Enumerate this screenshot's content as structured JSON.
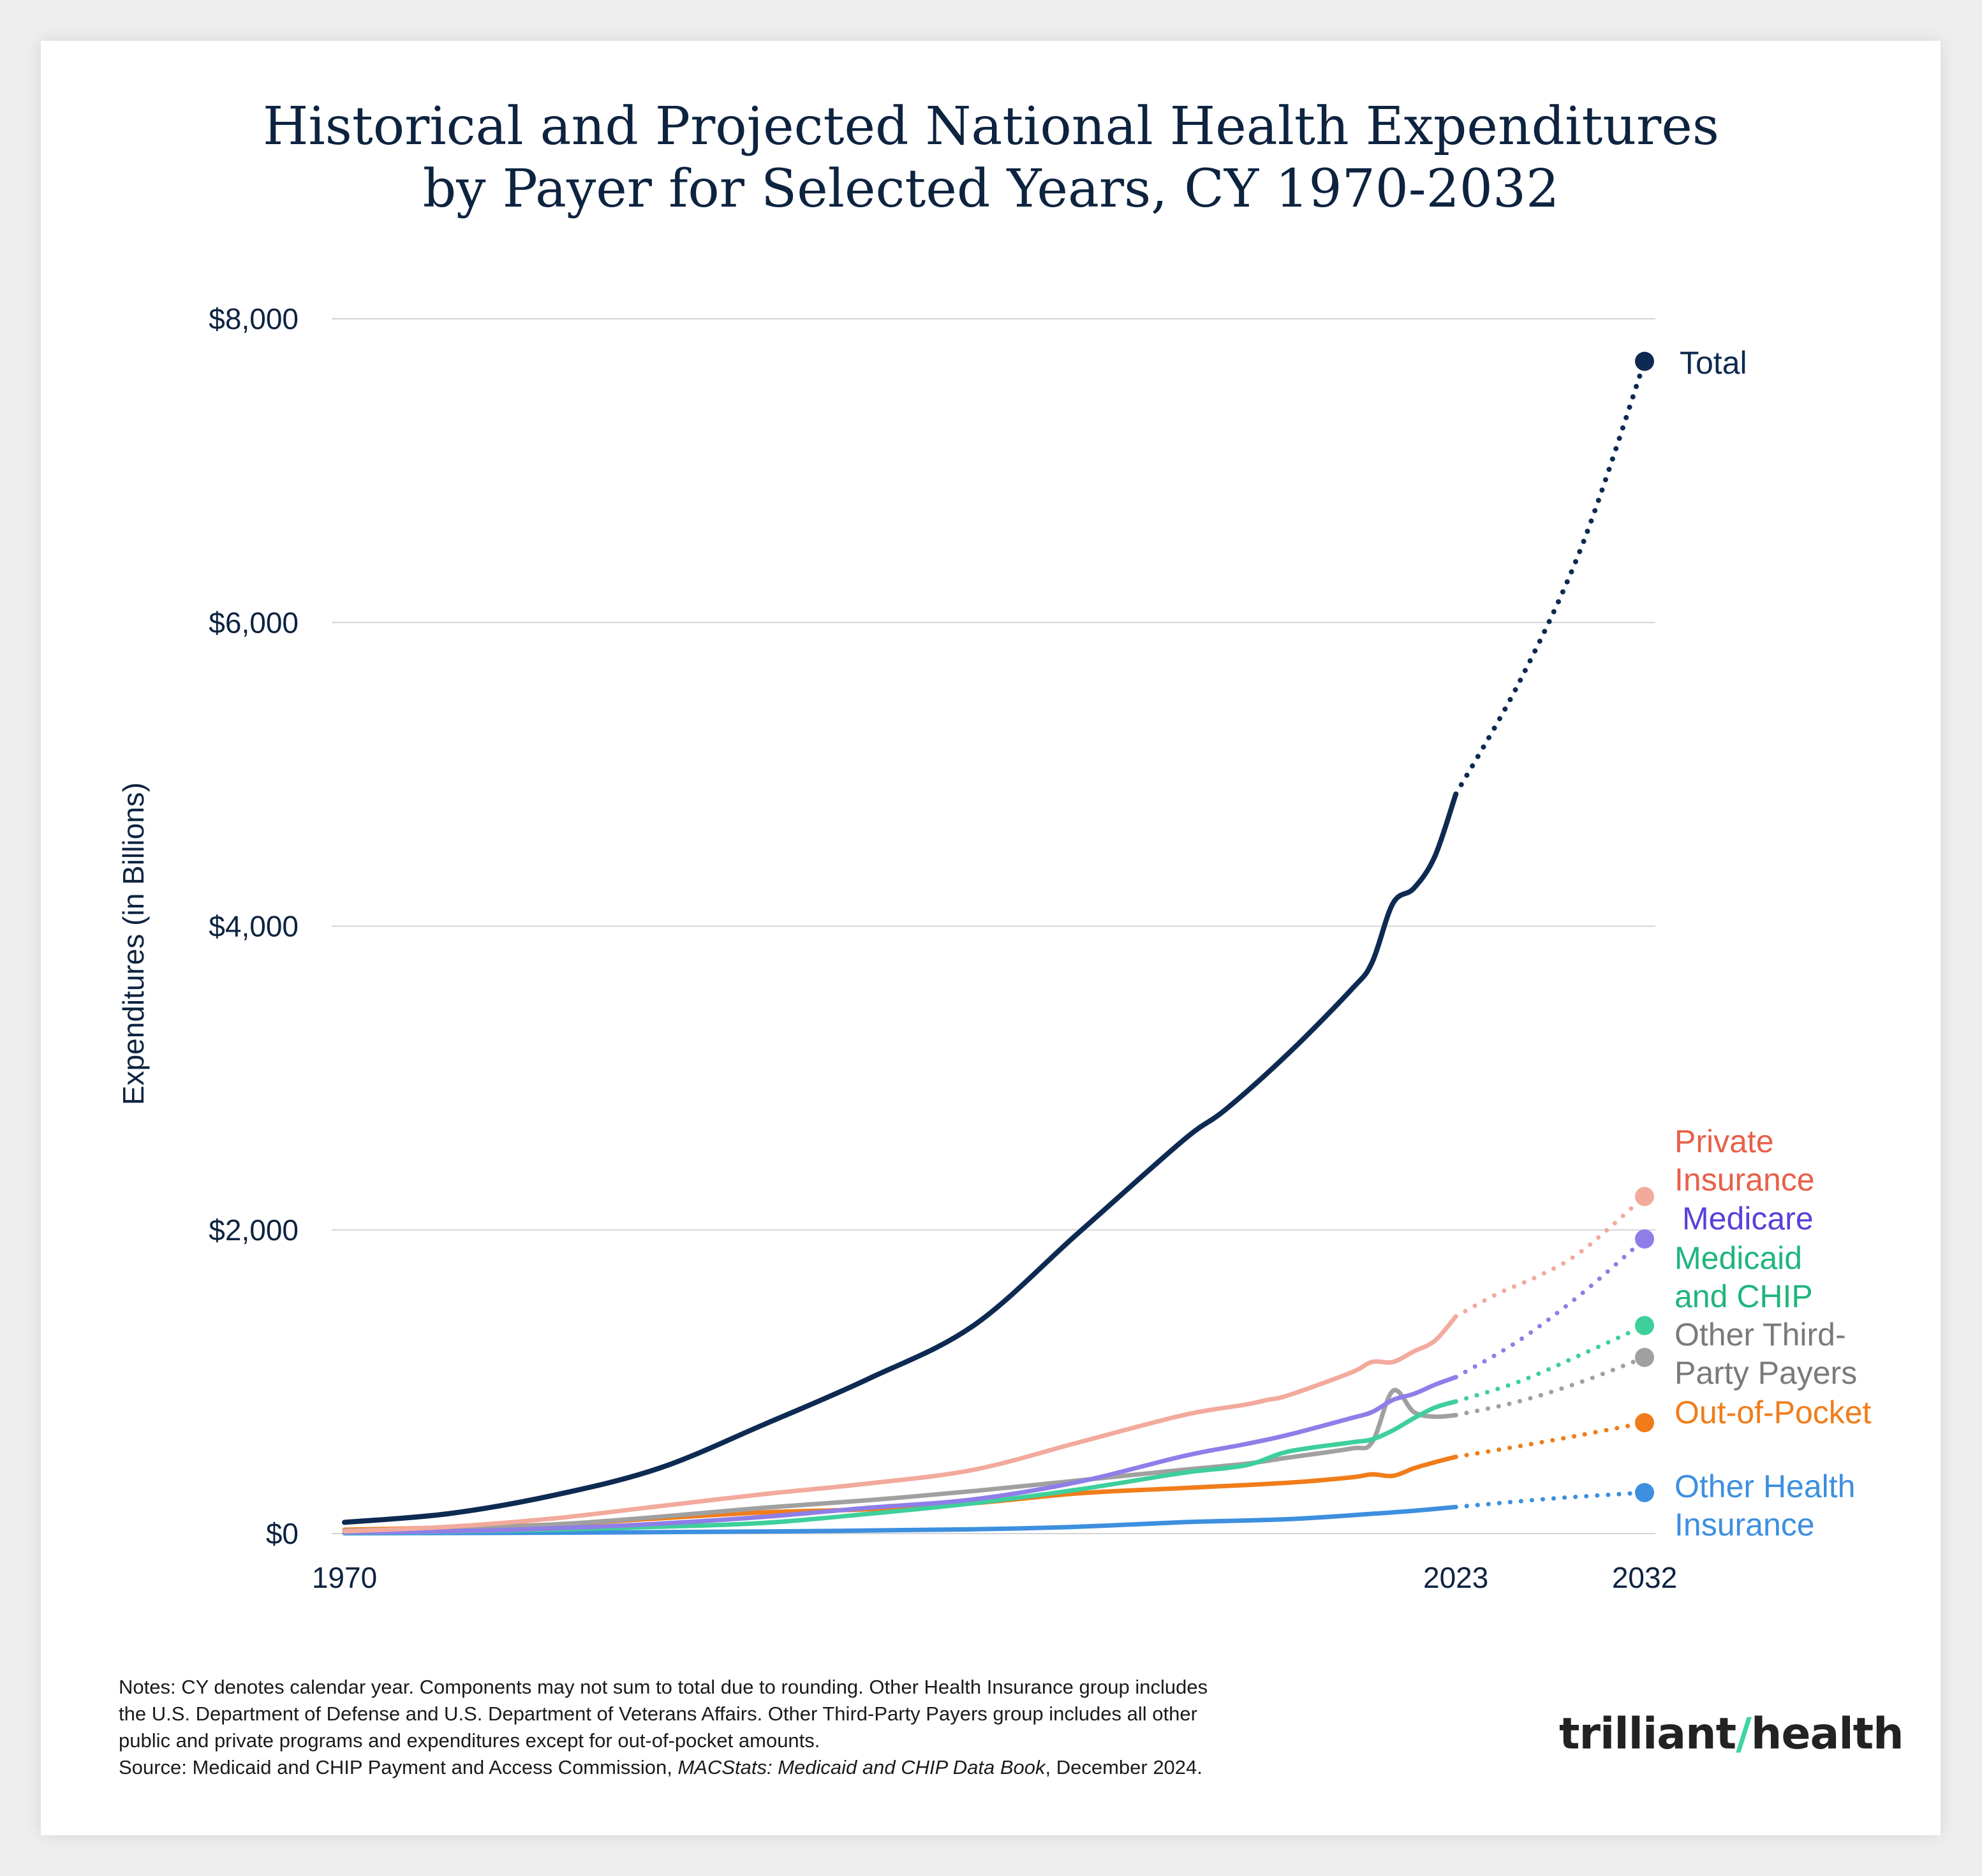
{
  "title_line1": "Historical and Projected National Health Expenditures",
  "title_line2": "by Payer for Selected Years, CY 1970-2032",
  "chart_data": {
    "type": "line",
    "title": "Historical and Projected National Health Expenditures by Payer for Selected Years, CY 1970-2032",
    "xlabel": "",
    "ylabel": "Expenditures (in Billions)",
    "ylim": [
      0,
      8000
    ],
    "xlim": [
      1970,
      2032
    ],
    "y_ticks": [
      0,
      2000,
      4000,
      6000,
      8000
    ],
    "y_tick_labels": [
      "$0",
      "$2,000",
      "$4,000",
      "$6,000",
      "$8,000"
    ],
    "x_tick_values": [
      1970,
      2023,
      2032
    ],
    "x_tick_labels": [
      "1970",
      "2023",
      "2032"
    ],
    "grid": true,
    "historical_end": 2023,
    "series": [
      {
        "name": "Other Health Insurance",
        "label_lines": [
          "Other Health",
          "Insurance"
        ],
        "color": "#3d8fe0",
        "points": [
          [
            1970,
            2
          ],
          [
            1980,
            6
          ],
          [
            1990,
            14
          ],
          [
            2000,
            28
          ],
          [
            2005,
            45
          ],
          [
            2010,
            75
          ],
          [
            2015,
            95
          ],
          [
            2019,
            130
          ],
          [
            2021,
            150
          ],
          [
            2023,
            175
          ],
          [
            2025,
            200
          ],
          [
            2028,
            235
          ],
          [
            2032,
            270
          ]
        ]
      },
      {
        "name": "Out-of-Pocket",
        "label_lines": [
          "Out-of-Pocket"
        ],
        "color": "#f07d1a",
        "points": [
          [
            1970,
            25
          ],
          [
            1975,
            40
          ],
          [
            1980,
            60
          ],
          [
            1985,
            100
          ],
          [
            1990,
            140
          ],
          [
            1995,
            160
          ],
          [
            2000,
            200
          ],
          [
            2005,
            265
          ],
          [
            2010,
            300
          ],
          [
            2015,
            335
          ],
          [
            2018,
            370
          ],
          [
            2019,
            390
          ],
          [
            2020,
            380
          ],
          [
            2021,
            430
          ],
          [
            2022,
            470
          ],
          [
            2023,
            505
          ],
          [
            2026,
            575
          ],
          [
            2029,
            650
          ],
          [
            2032,
            730
          ]
        ]
      },
      {
        "name": "Other Third-Party Payers",
        "label_lines": [
          "Other Third-",
          "Party Payers"
        ],
        "color": "#a0a0a0",
        "points": [
          [
            1970,
            20
          ],
          [
            1975,
            35
          ],
          [
            1980,
            60
          ],
          [
            1985,
            110
          ],
          [
            1990,
            170
          ],
          [
            1995,
            220
          ],
          [
            2000,
            280
          ],
          [
            2005,
            350
          ],
          [
            2010,
            420
          ],
          [
            2013,
            460
          ],
          [
            2015,
            500
          ],
          [
            2018,
            560
          ],
          [
            2019,
            600
          ],
          [
            2020,
            940
          ],
          [
            2021,
            800
          ],
          [
            2022,
            770
          ],
          [
            2023,
            780
          ],
          [
            2026,
            870
          ],
          [
            2029,
            1000
          ],
          [
            2032,
            1160
          ]
        ]
      },
      {
        "name": "Medicaid and CHIP",
        "label_lines": [
          "Medicaid",
          "and CHIP"
        ],
        "color": "#3ecf9b",
        "points": [
          [
            1970,
            5
          ],
          [
            1975,
            12
          ],
          [
            1980,
            25
          ],
          [
            1985,
            45
          ],
          [
            1990,
            70
          ],
          [
            1995,
            130
          ],
          [
            2000,
            200
          ],
          [
            2005,
            290
          ],
          [
            2010,
            400
          ],
          [
            2013,
            450
          ],
          [
            2015,
            540
          ],
          [
            2018,
            600
          ],
          [
            2019,
            620
          ],
          [
            2020,
            680
          ],
          [
            2021,
            760
          ],
          [
            2022,
            830
          ],
          [
            2023,
            870
          ],
          [
            2026,
            1000
          ],
          [
            2029,
            1180
          ],
          [
            2032,
            1370
          ]
        ]
      },
      {
        "name": "Medicare",
        "label_lines": [
          "Medicare"
        ],
        "color": "#8e7ee8",
        "points": [
          [
            1970,
            8
          ],
          [
            1975,
            15
          ],
          [
            1980,
            35
          ],
          [
            1985,
            65
          ],
          [
            1990,
            110
          ],
          [
            1995,
            170
          ],
          [
            2000,
            225
          ],
          [
            2005,
            340
          ],
          [
            2010,
            510
          ],
          [
            2013,
            590
          ],
          [
            2015,
            650
          ],
          [
            2018,
            760
          ],
          [
            2019,
            800
          ],
          [
            2020,
            880
          ],
          [
            2021,
            920
          ],
          [
            2022,
            980
          ],
          [
            2023,
            1030
          ],
          [
            2026,
            1270
          ],
          [
            2029,
            1580
          ],
          [
            2032,
            1940
          ]
        ]
      },
      {
        "name": "Private Insurance",
        "label_lines": [
          "Private",
          "Insurance"
        ],
        "color": "#f2aa9c",
        "points": [
          [
            1970,
            15
          ],
          [
            1975,
            45
          ],
          [
            1980,
            100
          ],
          [
            1985,
            180
          ],
          [
            1990,
            260
          ],
          [
            1995,
            330
          ],
          [
            2000,
            420
          ],
          [
            2005,
            600
          ],
          [
            2010,
            780
          ],
          [
            2013,
            850
          ],
          [
            2014,
            880
          ],
          [
            2015,
            910
          ],
          [
            2018,
            1060
          ],
          [
            2019,
            1130
          ],
          [
            2020,
            1130
          ],
          [
            2021,
            1200
          ],
          [
            2022,
            1270
          ],
          [
            2023,
            1430
          ],
          [
            2025,
            1580
          ],
          [
            2027,
            1700
          ],
          [
            2029,
            1860
          ],
          [
            2032,
            2220
          ]
        ]
      },
      {
        "name": "Total",
        "label_lines": [
          "Total"
        ],
        "color": "#0d2a52",
        "points": [
          [
            1970,
            74
          ],
          [
            1975,
            132
          ],
          [
            1980,
            253
          ],
          [
            1985,
            430
          ],
          [
            1990,
            718
          ],
          [
            1995,
            1020
          ],
          [
            2000,
            1370
          ],
          [
            2005,
            1980
          ],
          [
            2010,
            2590
          ],
          [
            2012,
            2790
          ],
          [
            2015,
            3160
          ],
          [
            2018,
            3580
          ],
          [
            2019,
            3760
          ],
          [
            2020,
            4150
          ],
          [
            2021,
            4250
          ],
          [
            2022,
            4460
          ],
          [
            2023,
            4870
          ],
          [
            2026,
            5600
          ],
          [
            2029,
            6500
          ],
          [
            2032,
            7720
          ]
        ]
      }
    ]
  },
  "notes": {
    "line1": "Notes: CY denotes calendar year. Components may not sum to total due to rounding. Other Health Insurance group includes",
    "line2": "the U.S. Department of Defense and U.S. Department of Veterans Affairs. Other Third-Party Payers group includes all other",
    "line3": "public and private programs and expenditures except for out-of-pocket amounts.",
    "source_prefix": "Source: Medicaid and CHIP Payment and Access Commission, ",
    "source_title": "MACStats: Medicaid and CHIP Data Book",
    "source_suffix": ", December 2024."
  },
  "logo": {
    "part1": "trilliant",
    "part2": "health"
  }
}
